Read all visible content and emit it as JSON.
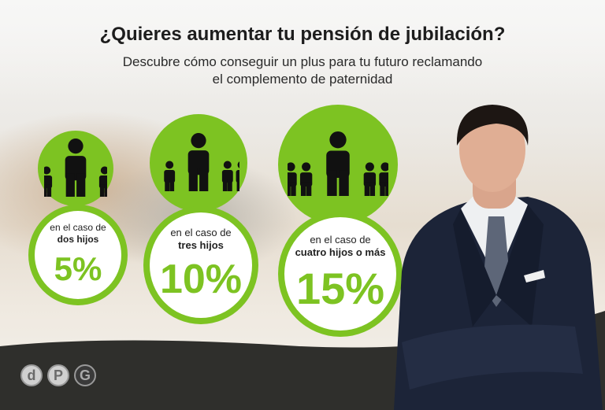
{
  "header": {
    "title": "¿Quieres aumentar tu pensión de jubilación?",
    "subtitle_line1": "Descubre cómo conseguir un plus para tu futuro reclamando",
    "subtitle_line2": "el complemento de paternidad"
  },
  "cases": [
    {
      "prefix": "en el caso de",
      "children": "dos hijos",
      "percent": "5%",
      "children_count": 2
    },
    {
      "prefix": "en el caso de",
      "children": "tres hijos",
      "percent": "10%",
      "children_count": 3
    },
    {
      "prefix": "en el caso de",
      "children": "cuatro hijos o más",
      "percent": "15%",
      "children_count": 4
    }
  ],
  "logo": {
    "letters": [
      "d",
      "P",
      "G"
    ]
  },
  "colors": {
    "accent": "#7dc322",
    "dark_band": "#2f2f2c",
    "icon": "#111111"
  }
}
